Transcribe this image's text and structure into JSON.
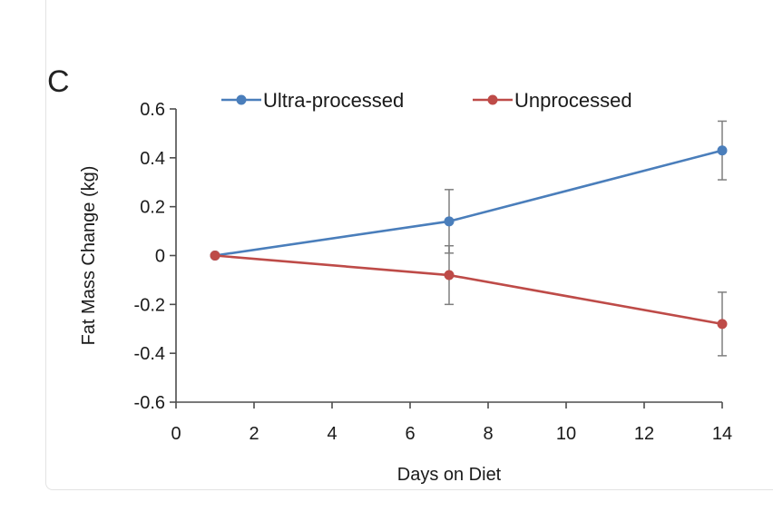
{
  "panel_label": "C",
  "chart_data": {
    "type": "line",
    "title": "",
    "xlabel": "Days on Diet",
    "ylabel": "Fat Mass Change (kg)",
    "xlim": [
      0,
      14
    ],
    "ylim": [
      -0.6,
      0.6
    ],
    "x_ticks": [
      0,
      2,
      4,
      6,
      8,
      10,
      12,
      14
    ],
    "y_ticks": [
      -0.6,
      -0.4,
      -0.2,
      0,
      0.2,
      0.4,
      0.6
    ],
    "x_tick_labels": [
      "0",
      "2",
      "4",
      "6",
      "8",
      "10",
      "12",
      "14"
    ],
    "y_tick_labels": [
      "-0.6",
      "-0.4",
      "-0.2",
      "0",
      "0.2",
      "0.4",
      "0.6"
    ],
    "legend_position": "top",
    "grid": false,
    "series": [
      {
        "name": "Ultra-processed",
        "color": "#4a7ebb",
        "x": [
          1,
          7,
          14
        ],
        "y": [
          0,
          0.14,
          0.43
        ],
        "error": [
          0,
          0.13,
          0.12
        ]
      },
      {
        "name": "Unprocessed",
        "color": "#be4b48",
        "x": [
          1,
          7,
          14
        ],
        "y": [
          0,
          -0.08,
          -0.28
        ],
        "error": [
          0,
          0.12,
          0.13
        ]
      }
    ]
  }
}
